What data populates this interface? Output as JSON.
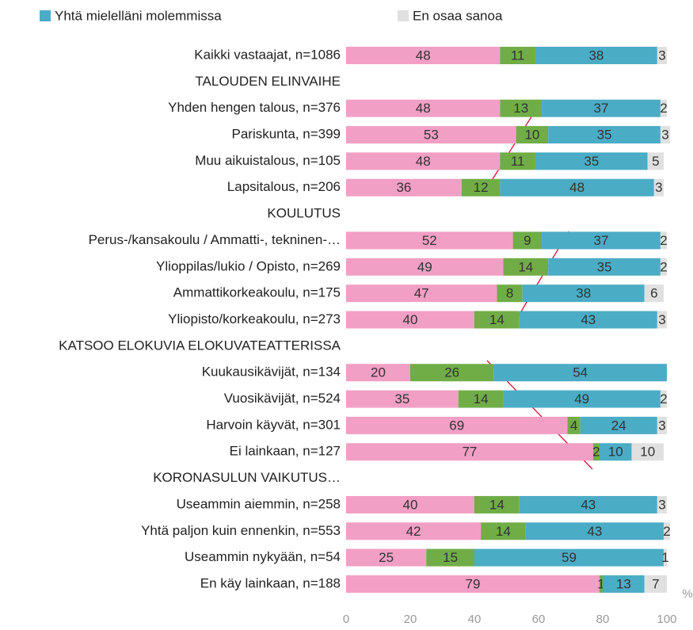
{
  "chart_data": {
    "type": "stacked_barh",
    "categories": [
      "Kaikki vastaajat, n=1086",
      "TALOUDEN ELINVAIHE",
      "Yhden hengen talous, n=376",
      "Pariskunta, n=399",
      "Muu aikuistalous, n=105",
      "Lapsitalous, n=206",
      "KOULUTUS",
      "Perus-/kansakoulu / Ammatti-, tekninen-…",
      "Ylioppilas/lukio / Opisto, n=269",
      "Ammattikorkeakoulu, n=175",
      "Yliopisto/korkeakoulu, n=273",
      "KATSOO ELOKUVIA ELOKUVATEATTERISSA",
      "Kuukausikävijät, n=134",
      "Vuosikävijät, n=524",
      "Harvoin käyvät, n=301",
      "Ei lainkaan, n=127",
      "KORONASULUN VAIKUTUS…",
      "Useammin aiemmin, n=258",
      "Yhtä paljon kuin ennenkin, n=553",
      "Useammin nykyään, n=54",
      "En käy lainkaan, n=188"
    ],
    "series": [
      {
        "color": "#f29fc5",
        "values": [
          48,
          null,
          48,
          53,
          48,
          36,
          null,
          52,
          49,
          47,
          40,
          null,
          20,
          35,
          69,
          77,
          null,
          40,
          42,
          25,
          79
        ]
      },
      {
        "color": "#70ad47",
        "values": [
          11,
          null,
          13,
          10,
          11,
          12,
          null,
          9,
          14,
          8,
          14,
          null,
          26,
          14,
          4,
          2,
          null,
          14,
          14,
          15,
          1
        ]
      },
      {
        "name": "Yhtä mielelläni molemmissa",
        "color": "#4bacc6",
        "values": [
          38,
          null,
          37,
          35,
          35,
          48,
          null,
          37,
          35,
          38,
          43,
          null,
          54,
          49,
          24,
          10,
          null,
          43,
          43,
          59,
          13
        ]
      },
      {
        "name": "En osaa sanoa",
        "color": "#e0e0e0",
        "values": [
          3,
          null,
          2,
          3,
          5,
          3,
          null,
          2,
          2,
          6,
          3,
          null,
          null,
          2,
          3,
          10,
          null,
          3,
          2,
          1,
          7
        ]
      }
    ],
    "xlim": [
      0,
      100
    ],
    "xticks": [
      0,
      20,
      40,
      60,
      80,
      100
    ],
    "xlabel": "%"
  }
}
